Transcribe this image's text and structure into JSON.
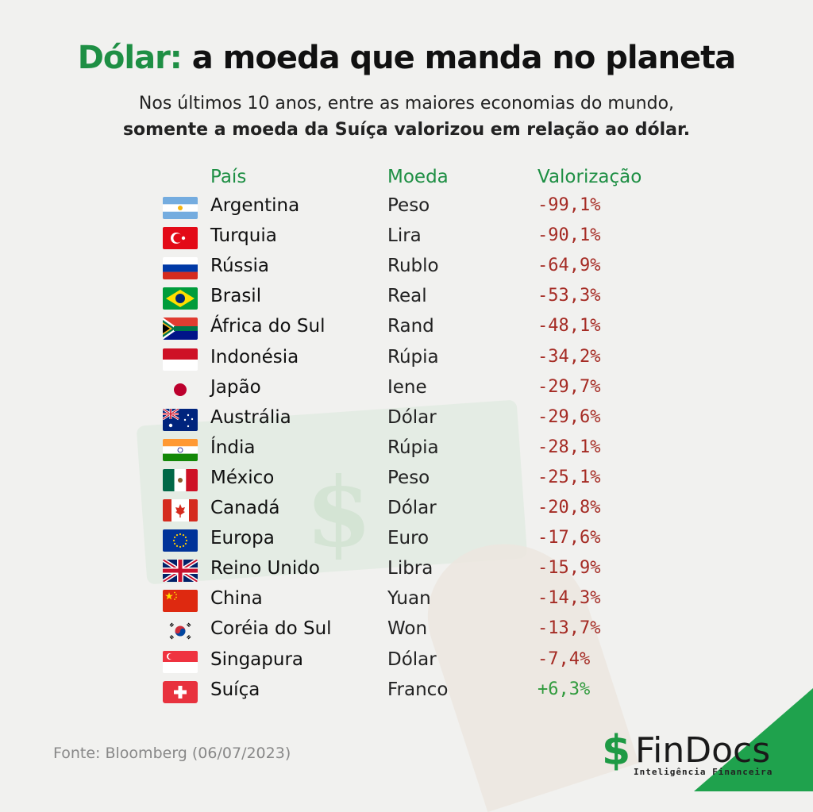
{
  "title": {
    "accent": "Dólar:",
    "rest": "a moeda que manda no planeta"
  },
  "subtitle": {
    "line1": "Nos últimos 10 anos, entre as maiores economias do mundo,",
    "line2": "somente a moeda da Suíça valorizou em relação ao dólar."
  },
  "headers": {
    "country": "País",
    "currency": "Moeda",
    "change": "Valorização"
  },
  "rows": [
    {
      "country": "Argentina",
      "currency": "Peso",
      "change": "-99,1%",
      "flag": "argentina-flag-icon"
    },
    {
      "country": "Turquia",
      "currency": "Lira",
      "change": "-90,1%",
      "flag": "turkey-flag-icon"
    },
    {
      "country": "Rússia",
      "currency": "Rublo",
      "change": "-64,9%",
      "flag": "russia-flag-icon"
    },
    {
      "country": "Brasil",
      "currency": "Real",
      "change": "-53,3%",
      "flag": "brazil-flag-icon"
    },
    {
      "country": "África do Sul",
      "currency": "Rand",
      "change": "-48,1%",
      "flag": "south-africa-flag-icon"
    },
    {
      "country": "Indonésia",
      "currency": "Rúpia",
      "change": "-34,2%",
      "flag": "indonesia-flag-icon"
    },
    {
      "country": "Japão",
      "currency": "Iene",
      "change": "-29,7%",
      "flag": "japan-flag-icon"
    },
    {
      "country": "Austrália",
      "currency": "Dólar",
      "change": "-29,6%",
      "flag": "australia-flag-icon"
    },
    {
      "country": "Índia",
      "currency": "Rúpia",
      "change": "-28,1%",
      "flag": "india-flag-icon"
    },
    {
      "country": "México",
      "currency": "Peso",
      "change": "-25,1%",
      "flag": "mexico-flag-icon"
    },
    {
      "country": "Canadá",
      "currency": "Dólar",
      "change": "-20,8%",
      "flag": "canada-flag-icon"
    },
    {
      "country": "Europa",
      "currency": "Euro",
      "change": "-17,6%",
      "flag": "eu-flag-icon"
    },
    {
      "country": "Reino Unido",
      "currency": "Libra",
      "change": "-15,9%",
      "flag": "uk-flag-icon"
    },
    {
      "country": "China",
      "currency": "Yuan",
      "change": "-14,3%",
      "flag": "china-flag-icon"
    },
    {
      "country": "Coréia do Sul",
      "currency": "Won",
      "change": "-13,7%",
      "flag": "south-korea-flag-icon"
    },
    {
      "country": "Singapura",
      "currency": "Dólar",
      "change": "-7,4%",
      "flag": "singapore-flag-icon"
    },
    {
      "country": "Suíça",
      "currency": "Franco",
      "change": "+6,3%",
      "flag": "switzerland-flag-icon"
    }
  ],
  "colors": {
    "accent": "#1e8f44",
    "negative": "#a52b24",
    "positive": "#2f9a3c"
  },
  "source": "Fonte: Bloomberg (06/07/2023)",
  "brand": {
    "symbol": "$",
    "name": "FinDocs",
    "tagline": "Inteligência Financeira"
  }
}
